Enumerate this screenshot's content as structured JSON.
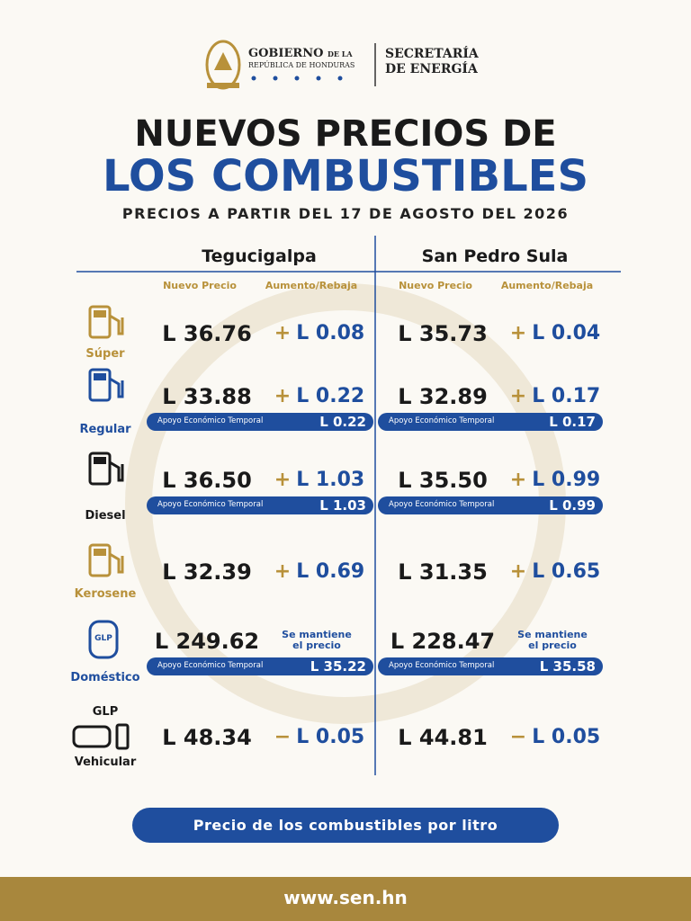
{
  "header": {
    "gov_name": "GOBIERNO",
    "gov_suffix": "DE LA",
    "gov_country": "REPÚBLICA DE HONDURAS",
    "secretariat": [
      "SECRETARÍA",
      "DE ENERGÍA"
    ]
  },
  "title": [
    "NUEVOS PRECIOS DE",
    "LOS COMBUSTIBLES"
  ],
  "subtitle": "PRECIOS A PARTIR DEL 17 DE AGOSTO DEL 2026",
  "cities": [
    "Tegucigalpa",
    "San Pedro Sula"
  ],
  "columns": [
    "Nuevo Precio",
    "Aumento/Rebaja"
  ],
  "rows": [
    {
      "name": [
        "Súper"
      ],
      "prices": [
        {
          "price": "L 36.76",
          "sign": "+",
          "change": "L 0.08"
        },
        {
          "price": "L 35.73",
          "sign": "+",
          "change": "L 0.04"
        }
      ]
    },
    {
      "name": [
        "Regular"
      ],
      "prices": [
        {
          "price": "L 33.88",
          "sign": "+",
          "change": "L 0.22",
          "support": {
            "label": "Apoyo Económico Temporal",
            "value": "L 0.22"
          }
        },
        {
          "price": "L 32.89",
          "sign": "+",
          "change": "L 0.17",
          "support": {
            "label": "Apoyo Económico Temporal",
            "value": "L 0.17"
          }
        }
      ]
    },
    {
      "name": [
        "Diesel"
      ],
      "prices": [
        {
          "price": "L 36.50",
          "sign": "+",
          "change": "L 1.03",
          "support": {
            "label": "Apoyo Económico Temporal",
            "value": "L 1.03"
          }
        },
        {
          "price": "L 35.50",
          "sign": "+",
          "change": "L 0.99",
          "support": {
            "label": "Apoyo Económico Temporal",
            "value": "L 0.99"
          }
        }
      ]
    },
    {
      "name": [
        "Kerosene"
      ],
      "prices": [
        {
          "price": "L 32.39",
          "sign": "+",
          "change": "L 0.69"
        },
        {
          "price": "L 31.35",
          "sign": "+",
          "change": "L 0.65"
        }
      ]
    },
    {
      "name": [
        "Doméstico"
      ],
      "icon_label": "GLP",
      "prices": [
        {
          "price": "L 249.62",
          "note": [
            "Se mantiene",
            "el precio"
          ],
          "support": {
            "label": "Apoyo Económico Temporal",
            "value": "L 35.22"
          }
        },
        {
          "price": "L 228.47",
          "note": [
            "Se mantiene",
            "el precio"
          ],
          "support": {
            "label": "Apoyo Económico Temporal",
            "value": "L 35.58"
          }
        }
      ]
    },
    {
      "name": [
        "GLP",
        "Vehicular"
      ],
      "prices": [
        {
          "price": "L 48.34",
          "sign": "−",
          "change": "L 0.05"
        },
        {
          "price": "L 44.81",
          "sign": "−",
          "change": "L 0.05"
        }
      ]
    }
  ],
  "footer": {
    "note": "Precio de los combustibles por litro",
    "website": "www.sen.hn"
  }
}
